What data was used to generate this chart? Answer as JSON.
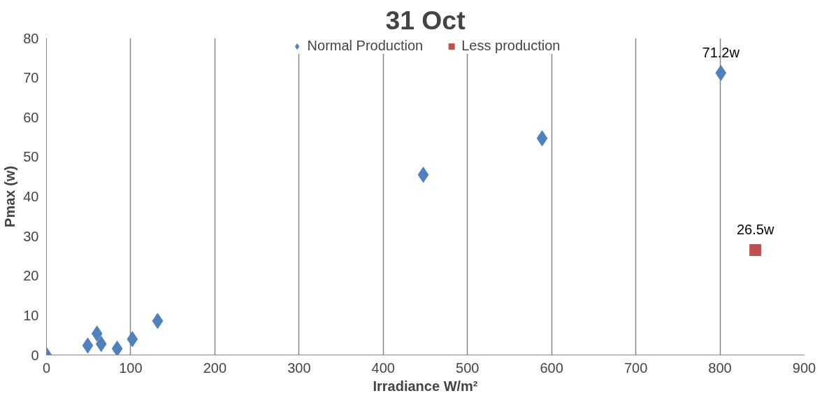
{
  "chart_data": {
    "type": "scatter",
    "title": "31 Oct",
    "xlabel": "Irradiance W/m²",
    "ylabel": "Pmax (w)",
    "xlim": [
      0,
      900
    ],
    "xticks": [
      0,
      100,
      200,
      300,
      400,
      500,
      600,
      700,
      800,
      900
    ],
    "ylim": [
      0,
      80
    ],
    "yticks": [
      0,
      10,
      20,
      30,
      40,
      50,
      60,
      70,
      80
    ],
    "grid": "x",
    "legend": "top",
    "series": [
      {
        "name": "Normal Production",
        "color": "#4f81bd",
        "marker": "diamond",
        "x": [
          0,
          49,
          60,
          65,
          84,
          102,
          132,
          447.5,
          588.7,
          801
        ],
        "values": [
          0,
          2.4,
          5.4,
          2.8,
          1.6,
          4,
          8.6,
          45.5,
          54.7,
          71.2
        ],
        "value_labels": [
          null,
          null,
          null,
          null,
          null,
          null,
          null,
          null,
          null,
          "71.2w"
        ]
      },
      {
        "name": "Less production",
        "color": "#c0504d",
        "marker": "square",
        "x": [
          842
        ],
        "values": [
          26.5
        ],
        "value_labels": [
          "26.5w"
        ]
      }
    ]
  }
}
